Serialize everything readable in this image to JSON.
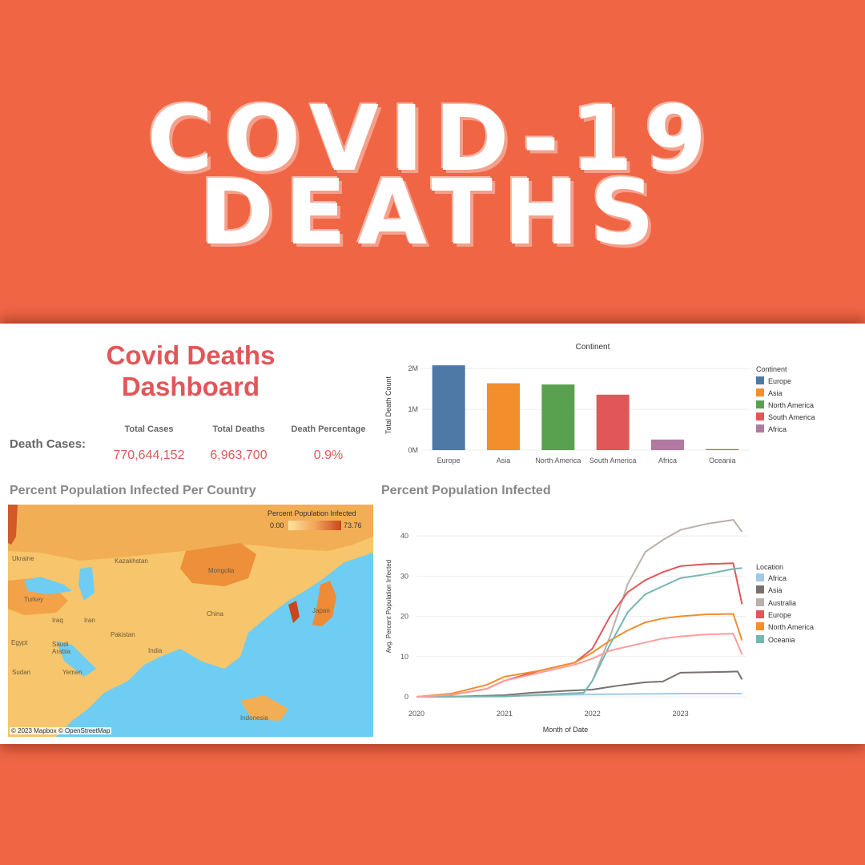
{
  "hero": {
    "line1": "COVID-19",
    "line2": "DEATHS"
  },
  "dashboard": {
    "title": "Covid Deaths Dashboard",
    "death_cases_label": "Death Cases:",
    "kpis": [
      {
        "label": "Total Cases",
        "value": "770,644,152"
      },
      {
        "label": "Total Deaths",
        "value": "6,963,700"
      },
      {
        "label": "Death Percentage",
        "value": "0.9%"
      }
    ],
    "map_title": "Percent Population Infected Per Country",
    "line_title": "Percent Population Infected"
  },
  "map": {
    "legend_title": "Percent Population Infected",
    "legend_min": "0.00",
    "legend_max": "73.76",
    "credit": "© 2023 Mapbox © OpenStreetMap",
    "labels": [
      "Ukraine",
      "Kazakhstan",
      "Mongolia",
      "Turkey",
      "Iran",
      "China",
      "Japan",
      "Egypt",
      "Saudi Arabia",
      "Pakistan",
      "India",
      "Sudan",
      "Yemen",
      "Indonesia",
      "Iraq"
    ]
  },
  "chart_data": [
    {
      "type": "bar",
      "title": "Continent",
      "xlabel": "",
      "ylabel": "Total Death Count",
      "categories": [
        "Europe",
        "Asia",
        "North America",
        "South America",
        "Africa",
        "Oceania"
      ],
      "values": [
        2080000,
        1640000,
        1610000,
        1360000,
        260000,
        25000
      ],
      "colors": [
        "#4e79a7",
        "#f28e2b",
        "#59a14f",
        "#e15759",
        "#b07aa1",
        "#9c755f"
      ],
      "yticks": [
        "0M",
        "1M",
        "2M"
      ],
      "ylim": [
        0,
        2200000
      ],
      "legend_title": "Continent",
      "legend": [
        "Europe",
        "Asia",
        "North America",
        "South America",
        "Africa"
      ],
      "legend_placement": "right"
    },
    {
      "type": "line",
      "title": "",
      "xlabel": "Month of Date",
      "ylabel": "Avg. Percent Population Infected",
      "xlim": [
        2020,
        2023.75
      ],
      "xticks": [
        "2020",
        "2021",
        "2022",
        "2023"
      ],
      "ylim": [
        0,
        45
      ],
      "yticks": [
        "0",
        "10",
        "20",
        "30",
        "40"
      ],
      "legend_title": "Location",
      "legend_placement": "right",
      "series": [
        {
          "name": "Africa",
          "color": "#a0cbe8",
          "x": [
            2020,
            2021,
            2022,
            2023,
            2023.7
          ],
          "y": [
            0,
            0.2,
            0.6,
            0.8,
            0.8
          ]
        },
        {
          "name": "Asia",
          "color": "#79706e",
          "x": [
            2020,
            2020.5,
            2021,
            2021.3,
            2021.7,
            2022,
            2022.3,
            2022.6,
            2022.8,
            2023,
            2023.5,
            2023.65,
            2023.7
          ],
          "y": [
            0,
            0.1,
            0.4,
            1.0,
            1.5,
            1.8,
            2.8,
            3.6,
            3.8,
            6.0,
            6.2,
            6.3,
            4.3
          ]
        },
        {
          "name": "Australia",
          "color": "#bab0ac",
          "x": [
            2020,
            2021,
            2021.9,
            2022,
            2022.2,
            2022.4,
            2022.6,
            2022.8,
            2023,
            2023.3,
            2023.6,
            2023.7
          ],
          "y": [
            0,
            0.1,
            1.0,
            4.0,
            15.0,
            28.0,
            36.0,
            39.0,
            41.5,
            43.0,
            44.0,
            41.0
          ]
        },
        {
          "name": "Europe",
          "color": "#e15759",
          "x": [
            2020,
            2020.4,
            2020.8,
            2021,
            2021.4,
            2021.8,
            2022,
            2022.2,
            2022.4,
            2022.6,
            2022.8,
            2023,
            2023.3,
            2023.6,
            2023.7
          ],
          "y": [
            0,
            0.5,
            2.0,
            4.0,
            6.5,
            8.5,
            12.0,
            20.0,
            26.0,
            29.0,
            31.0,
            32.5,
            33.0,
            33.2,
            23.0
          ]
        },
        {
          "name": "North America",
          "color": "#f28e2b",
          "x": [
            2020,
            2020.4,
            2020.8,
            2021,
            2021.4,
            2021.8,
            2022,
            2022.2,
            2022.4,
            2022.6,
            2022.8,
            2023,
            2023.3,
            2023.6,
            2023.7
          ],
          "y": [
            0,
            0.8,
            3.0,
            5.0,
            6.5,
            8.5,
            11.0,
            14.0,
            16.5,
            18.5,
            19.5,
            20.0,
            20.5,
            20.6,
            14.0
          ]
        },
        {
          "name": "Oceania",
          "color": "#76b7b2",
          "x": [
            2020,
            2021,
            2021.9,
            2022,
            2022.2,
            2022.4,
            2022.6,
            2022.8,
            2023,
            2023.3,
            2023.6,
            2023.7
          ],
          "y": [
            0,
            0.1,
            1.0,
            4.0,
            13.0,
            21.0,
            25.5,
            27.5,
            29.5,
            30.5,
            31.8,
            32.0
          ]
        },
        {
          "name": "South America",
          "color": "#ff9d9a",
          "x": [
            2020,
            2020.4,
            2020.8,
            2021,
            2021.4,
            2021.8,
            2022,
            2022.2,
            2022.4,
            2022.6,
            2022.8,
            2023,
            2023.3,
            2023.6,
            2023.7
          ],
          "y": [
            0,
            0.5,
            2.0,
            4.0,
            6.0,
            8.0,
            9.5,
            11.5,
            12.5,
            13.5,
            14.5,
            15.0,
            15.5,
            15.7,
            10.5
          ]
        }
      ],
      "legend": [
        "Africa",
        "Asia",
        "Australia",
        "Europe",
        "North America",
        "Oceania"
      ]
    }
  ],
  "colors": {
    "background": "#f06645",
    "accent": "#e15759"
  }
}
